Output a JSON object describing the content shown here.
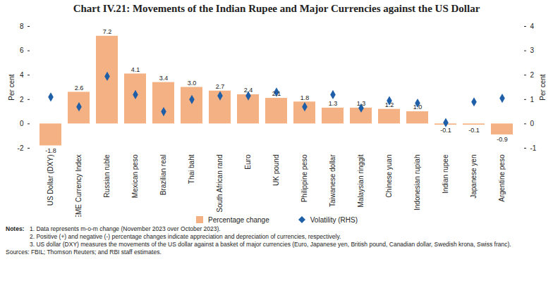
{
  "chart_data": {
    "type": "bar",
    "title": "Chart IV.21: Movements of the Indian Rupee and Major Currencies against the US Dollar",
    "categories": [
      "US Dollar (DXY)",
      "EME Currency Index",
      "Russian ruble",
      "Mexican peso",
      "Brazilian real",
      "Thai baht",
      "South African rand",
      "Euro",
      "UK pound",
      "Philippine peso",
      "Taiwanese dollar",
      "Malaysian ringgit",
      "Chinese yuan",
      "Indonesian rupiah",
      "Indian rupee",
      "Japanese yen",
      "Argentine peso"
    ],
    "series": [
      {
        "name": "Percentage change",
        "type": "bar",
        "color": "#f4b183",
        "values": [
          -1.8,
          2.6,
          7.2,
          4.1,
          3.4,
          3.0,
          2.7,
          2.4,
          2.1,
          1.8,
          1.3,
          1.3,
          1.2,
          1.0,
          -0.1,
          -0.1,
          -0.9
        ],
        "value_labels": [
          "-1.8",
          "2.6",
          "7.2",
          "4.1",
          "3.4",
          "3.0",
          "2.7",
          "2.4",
          "2.1",
          "1.8",
          "1.3",
          "1.3",
          "1.2",
          "1.0",
          "-0.1",
          "-0.1",
          "-0.9"
        ]
      },
      {
        "name": "Volatility (RHS)",
        "type": "scatter",
        "marker": "diamond",
        "color": "#1f5fa8",
        "axis": "y2",
        "values": [
          1.1,
          0.7,
          1.95,
          1.2,
          0.5,
          1.0,
          1.15,
          1.15,
          1.3,
          0.7,
          1.2,
          0.65,
          0.95,
          0.85,
          0.05,
          0.9,
          1.05
        ]
      }
    ],
    "ylabel": "Per cent",
    "y2label": "Per cent",
    "ylim": [
      -2,
      8
    ],
    "yticks": [
      -2,
      0,
      2,
      4,
      6,
      8
    ],
    "y2lim": [
      -1,
      4
    ],
    "y2ticks": [
      -1,
      0,
      1,
      2,
      3,
      4
    ],
    "data_labels": true,
    "grid": false,
    "legend": "bottom",
    "notes_label": "Notes:",
    "notes": [
      "1. Data represents m-o-m change (November 2023 over October 2023).",
      "2. Positive (+) and negative (-) percentage changes indicate appreciation and depreciation of currencies, respectively.",
      "3. US dollar (DXY) measures the movements of the US dollar against a basket of major currencies (Euro, Japanese yen, British pound, Canadian dollar, Swedish krona, Swiss franc)."
    ],
    "sources": "Sources: FBIL; Thomson Reuters; and RBI staff estimates."
  }
}
